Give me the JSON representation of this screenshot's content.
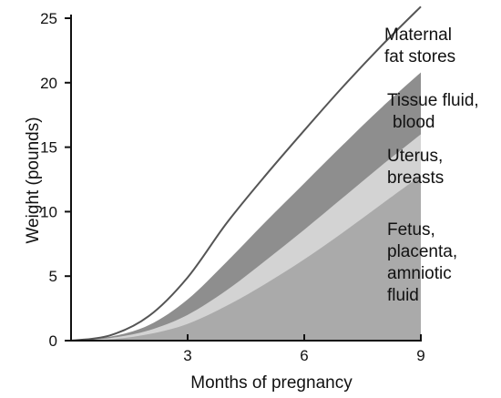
{
  "chart_data": {
    "type": "area",
    "stacked": true,
    "xlabel": "Months of pregnancy",
    "ylabel": "Weight (pounds)",
    "xlim": [
      0,
      9
    ],
    "ylim": [
      0,
      25
    ],
    "x_ticks": [
      3,
      6,
      9
    ],
    "y_ticks": [
      0,
      5,
      10,
      15,
      20,
      25
    ],
    "x": [
      0,
      1,
      2,
      3,
      4,
      5,
      6,
      7,
      8,
      9
    ],
    "series": [
      {
        "name": "Fetus, placenta, amniotic fluid",
        "label_lines": [
          "Fetus,",
          "placenta,",
          "amniotic",
          "fluid"
        ],
        "color": "#aaaaaa",
        "values": [
          0,
          0.1,
          0.5,
          1.3,
          2.7,
          4.4,
          6.3,
          8.4,
          10.6,
          12.8
        ]
      },
      {
        "name": "Uterus, breasts",
        "label_lines": [
          "Uterus,",
          "breasts"
        ],
        "color": "#d3d3d3",
        "values": [
          0,
          0.1,
          0.3,
          0.7,
          1.2,
          1.8,
          2.3,
          2.7,
          3.0,
          3.2
        ]
      },
      {
        "name": "Tissue fluid, blood",
        "label_lines": [
          "Tissue fluid,",
          "blood"
        ],
        "color": "#8e8e8e",
        "values": [
          0,
          0.1,
          0.4,
          1.2,
          2.2,
          3.0,
          3.6,
          4.1,
          4.5,
          4.8
        ]
      },
      {
        "name": "Maternal fat stores",
        "label_lines": [
          "Maternal",
          "fat stores"
        ],
        "color": "#ffffff",
        "values": [
          0,
          0.1,
          0.7,
          1.7,
          3.0,
          3.6,
          4.1,
          4.5,
          4.8,
          5.1
        ]
      }
    ],
    "outline_color": "#555555"
  }
}
